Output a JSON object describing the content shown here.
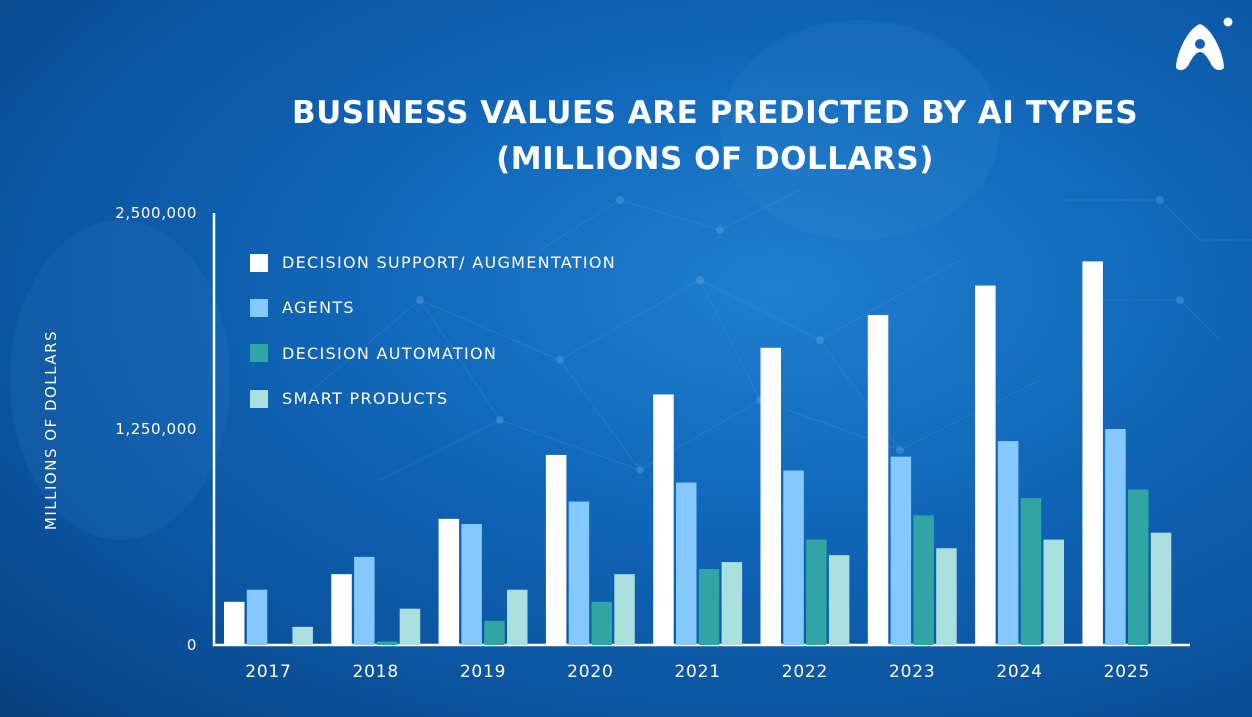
{
  "title": {
    "line1": "BUSINESS VALUES ARE PREDICTED BY AI TYPES",
    "line2": "(MILLIONS OF DOLLARS)"
  },
  "chart_data": {
    "type": "bar",
    "title": "BUSINESS VALUES ARE PREDICTED BY AI TYPES (MILLIONS OF DOLLARS)",
    "xlabel": "",
    "ylabel": "MILLIONS OF DOLLARS",
    "ylim": [
      0,
      2500000
    ],
    "yticks": [
      {
        "value": 0,
        "label": "0"
      },
      {
        "value": 1250000,
        "label": "1,250,000"
      },
      {
        "value": 2500000,
        "label": "2,500,000"
      }
    ],
    "categories": [
      "2017",
      "2018",
      "2019",
      "2020",
      "2021",
      "2022",
      "2023",
      "2024",
      "2025"
    ],
    "series": [
      {
        "name": "DECISION SUPPORT/ AUGMENTATION",
        "color": "#ffffff",
        "values": [
          250000,
          410000,
          730000,
          1100000,
          1450000,
          1720000,
          1910000,
          2080000,
          2220000
        ]
      },
      {
        "name": "AGENTS",
        "color": "#85c8ff",
        "values": [
          320000,
          510000,
          700000,
          830000,
          940000,
          1010000,
          1090000,
          1180000,
          1250000
        ]
      },
      {
        "name": "DECISION AUTOMATION",
        "color": "#31a5a6",
        "values": [
          0,
          20000,
          140000,
          250000,
          440000,
          610000,
          750000,
          850000,
          900000
        ]
      },
      {
        "name": "SMART PRODUCTS",
        "color": "#a9dfdc",
        "values": [
          105000,
          210000,
          320000,
          410000,
          480000,
          520000,
          560000,
          610000,
          650000
        ]
      }
    ],
    "grid": false,
    "legend": "top-left"
  },
  "icons": {
    "logo": "brand-logo-icon"
  }
}
